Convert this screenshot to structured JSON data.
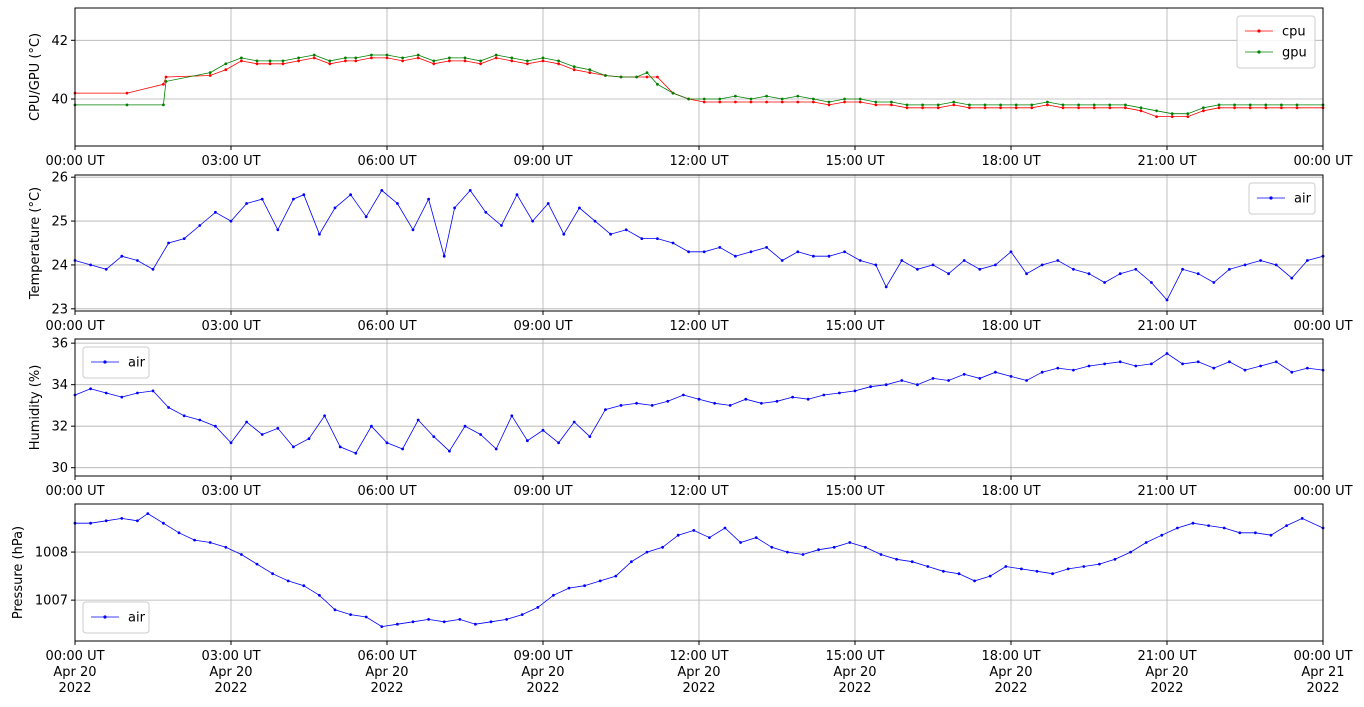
{
  "chart_data": [
    {
      "type": "line",
      "ylabel": "CPU/GPU (°C)",
      "ylim": [
        38.4,
        43.1
      ],
      "yticks": [
        40,
        42
      ],
      "legend": "top-right",
      "grid": true,
      "xlim": [
        "2022-04-20T00:00Z",
        "2022-04-21T00:00Z"
      ],
      "x_tick_labels": [
        "00:00 UT",
        "03:00 UT",
        "06:00 UT",
        "09:00 UT",
        "12:00 UT",
        "15:00 UT",
        "18:00 UT",
        "21:00 UT",
        "00:00 UT"
      ],
      "series": [
        {
          "name": "cpu",
          "color": "#ff0000",
          "x_hours": [
            0,
            1,
            1.7,
            1.75,
            2.6,
            2.9,
            3.2,
            3.5,
            3.75,
            4,
            4.3,
            4.6,
            4.9,
            5.2,
            5.4,
            5.7,
            6,
            6.3,
            6.6,
            6.9,
            7.2,
            7.5,
            7.8,
            8.1,
            8.4,
            8.7,
            9,
            9.3,
            9.6,
            9.9,
            10.2,
            10.5,
            10.8,
            11,
            11.2,
            11.5,
            11.8,
            12.1,
            12.4,
            12.7,
            13,
            13.3,
            13.6,
            13.9,
            14.2,
            14.5,
            14.8,
            15.1,
            15.4,
            15.7,
            16,
            16.3,
            16.6,
            16.9,
            17.2,
            17.5,
            17.8,
            18.1,
            18.4,
            18.7,
            19,
            19.3,
            19.6,
            19.9,
            20.2,
            20.5,
            20.8,
            21.1,
            21.4,
            21.7,
            22,
            22.3,
            22.6,
            22.9,
            23.2,
            23.5,
            24
          ],
          "values": [
            40.2,
            40.2,
            40.5,
            40.75,
            40.8,
            41.0,
            41.3,
            41.2,
            41.2,
            41.2,
            41.3,
            41.4,
            41.2,
            41.3,
            41.3,
            41.4,
            41.4,
            41.3,
            41.4,
            41.2,
            41.3,
            41.3,
            41.2,
            41.4,
            41.3,
            41.2,
            41.3,
            41.2,
            41.0,
            40.9,
            40.8,
            40.75,
            40.75,
            40.75,
            40.75,
            40.2,
            40.0,
            39.9,
            39.9,
            39.9,
            39.9,
            39.9,
            39.9,
            39.9,
            39.9,
            39.8,
            39.9,
            39.9,
            39.8,
            39.8,
            39.7,
            39.7,
            39.7,
            39.8,
            39.7,
            39.7,
            39.7,
            39.7,
            39.7,
            39.8,
            39.7,
            39.7,
            39.7,
            39.7,
            39.7,
            39.6,
            39.4,
            39.4,
            39.4,
            39.6,
            39.7,
            39.7,
            39.7,
            39.7,
            39.7,
            39.7,
            39.7
          ]
        },
        {
          "name": "gpu",
          "color": "#008000",
          "x_hours": [
            0,
            1,
            1.7,
            1.75,
            2.6,
            2.9,
            3.2,
            3.5,
            3.75,
            4,
            4.3,
            4.6,
            4.9,
            5.2,
            5.4,
            5.7,
            6,
            6.3,
            6.6,
            6.9,
            7.2,
            7.5,
            7.8,
            8.1,
            8.4,
            8.7,
            9,
            9.3,
            9.6,
            9.9,
            10.2,
            10.5,
            10.8,
            11,
            11.2,
            11.5,
            11.8,
            12.1,
            12.4,
            12.7,
            13,
            13.3,
            13.6,
            13.9,
            14.2,
            14.5,
            14.8,
            15.1,
            15.4,
            15.7,
            16,
            16.3,
            16.6,
            16.9,
            17.2,
            17.5,
            17.8,
            18.1,
            18.4,
            18.7,
            19,
            19.3,
            19.6,
            19.9,
            20.2,
            20.5,
            20.8,
            21.1,
            21.4,
            21.7,
            22,
            22.3,
            22.6,
            22.9,
            23.2,
            23.5,
            24
          ],
          "values": [
            39.8,
            39.8,
            39.8,
            40.6,
            40.9,
            41.2,
            41.4,
            41.3,
            41.3,
            41.3,
            41.4,
            41.5,
            41.3,
            41.4,
            41.4,
            41.5,
            41.5,
            41.4,
            41.5,
            41.3,
            41.4,
            41.4,
            41.3,
            41.5,
            41.4,
            41.3,
            41.4,
            41.3,
            41.1,
            41.0,
            40.8,
            40.75,
            40.75,
            40.9,
            40.5,
            40.2,
            40.0,
            40.0,
            40.0,
            40.1,
            40.0,
            40.1,
            40.0,
            40.1,
            40.0,
            39.9,
            40.0,
            40.0,
            39.9,
            39.9,
            39.8,
            39.8,
            39.8,
            39.9,
            39.8,
            39.8,
            39.8,
            39.8,
            39.8,
            39.9,
            39.8,
            39.8,
            39.8,
            39.8,
            39.8,
            39.7,
            39.6,
            39.5,
            39.5,
            39.7,
            39.8,
            39.8,
            39.8,
            39.8,
            39.8,
            39.8,
            39.8
          ]
        }
      ]
    },
    {
      "type": "line",
      "ylabel": "Temperature (°C)",
      "ylim": [
        22.95,
        26.05
      ],
      "yticks": [
        23,
        24,
        25,
        26
      ],
      "legend": "top-right",
      "grid": true,
      "x_tick_labels": [
        "00:00 UT",
        "03:00 UT",
        "06:00 UT",
        "09:00 UT",
        "12:00 UT",
        "15:00 UT",
        "18:00 UT",
        "21:00 UT",
        "00:00 UT"
      ],
      "series": [
        {
          "name": "air",
          "color": "#0000ff",
          "x_hours": [
            0,
            0.3,
            0.6,
            0.9,
            1.2,
            1.5,
            1.8,
            2.1,
            2.4,
            2.7,
            3.0,
            3.3,
            3.6,
            3.9,
            4.2,
            4.4,
            4.7,
            5.0,
            5.3,
            5.6,
            5.9,
            6.2,
            6.5,
            6.8,
            7.1,
            7.3,
            7.6,
            7.9,
            8.2,
            8.5,
            8.8,
            9.1,
            9.4,
            9.7,
            10.0,
            10.3,
            10.6,
            10.9,
            11.2,
            11.5,
            11.8,
            12.1,
            12.4,
            12.7,
            13.0,
            13.3,
            13.6,
            13.9,
            14.2,
            14.5,
            14.8,
            15.1,
            15.4,
            15.6,
            15.9,
            16.2,
            16.5,
            16.8,
            17.1,
            17.4,
            17.7,
            18.0,
            18.3,
            18.6,
            18.9,
            19.2,
            19.5,
            19.8,
            20.1,
            20.4,
            20.7,
            21.0,
            21.3,
            21.6,
            21.9,
            22.2,
            22.5,
            22.8,
            23.1,
            23.4,
            23.7,
            24.0
          ],
          "values": [
            24.1,
            24.0,
            23.9,
            24.2,
            24.1,
            23.9,
            24.5,
            24.6,
            24.9,
            25.2,
            25.0,
            25.4,
            25.5,
            24.8,
            25.5,
            25.6,
            24.7,
            25.3,
            25.6,
            25.1,
            25.7,
            25.4,
            24.8,
            25.5,
            24.2,
            25.3,
            25.7,
            25.2,
            24.9,
            25.6,
            25.0,
            25.4,
            24.7,
            25.3,
            25.0,
            24.7,
            24.8,
            24.6,
            24.6,
            24.5,
            24.3,
            24.3,
            24.4,
            24.2,
            24.3,
            24.4,
            24.1,
            24.3,
            24.2,
            24.2,
            24.3,
            24.1,
            24.0,
            23.5,
            24.1,
            23.9,
            24.0,
            23.8,
            24.1,
            23.9,
            24.0,
            24.3,
            23.8,
            24.0,
            24.1,
            23.9,
            23.8,
            23.6,
            23.8,
            23.9,
            23.6,
            23.2,
            23.9,
            23.8,
            23.6,
            23.9,
            24.0,
            24.1,
            24.0,
            23.7,
            24.1,
            24.2
          ]
        }
      ]
    },
    {
      "type": "line",
      "ylabel": "Humidity (%)",
      "ylim": [
        29.6,
        36.2
      ],
      "yticks": [
        30,
        32,
        34,
        36
      ],
      "legend": "top-left",
      "grid": true,
      "x_tick_labels": [
        "00:00 UT",
        "03:00 UT",
        "06:00 UT",
        "09:00 UT",
        "12:00 UT",
        "15:00 UT",
        "18:00 UT",
        "21:00 UT",
        "00:00 UT"
      ],
      "series": [
        {
          "name": "air",
          "color": "#0000ff",
          "x_hours": [
            0,
            0.3,
            0.6,
            0.9,
            1.2,
            1.5,
            1.8,
            2.1,
            2.4,
            2.7,
            3.0,
            3.3,
            3.6,
            3.9,
            4.2,
            4.5,
            4.8,
            5.1,
            5.4,
            5.7,
            6.0,
            6.3,
            6.6,
            6.9,
            7.2,
            7.5,
            7.8,
            8.1,
            8.4,
            8.7,
            9.0,
            9.3,
            9.6,
            9.9,
            10.2,
            10.5,
            10.8,
            11.1,
            11.4,
            11.7,
            12.0,
            12.3,
            12.6,
            12.9,
            13.2,
            13.5,
            13.8,
            14.1,
            14.4,
            14.7,
            15.0,
            15.3,
            15.6,
            15.9,
            16.2,
            16.5,
            16.8,
            17.1,
            17.4,
            17.7,
            18.0,
            18.3,
            18.6,
            18.9,
            19.2,
            19.5,
            19.8,
            20.1,
            20.4,
            20.7,
            21.0,
            21.3,
            21.6,
            21.9,
            22.2,
            22.5,
            22.8,
            23.1,
            23.4,
            23.7,
            24.0
          ],
          "values": [
            33.5,
            33.8,
            33.6,
            33.4,
            33.6,
            33.7,
            32.9,
            32.5,
            32.3,
            32.0,
            31.2,
            32.2,
            31.6,
            31.9,
            31.0,
            31.4,
            32.5,
            31.0,
            30.7,
            32.0,
            31.2,
            30.9,
            32.3,
            31.5,
            30.8,
            32.0,
            31.6,
            30.9,
            32.5,
            31.3,
            31.8,
            31.2,
            32.2,
            31.5,
            32.8,
            33.0,
            33.1,
            33.0,
            33.2,
            33.5,
            33.3,
            33.1,
            33.0,
            33.3,
            33.1,
            33.2,
            33.4,
            33.3,
            33.5,
            33.6,
            33.7,
            33.9,
            34.0,
            34.2,
            34.0,
            34.3,
            34.2,
            34.5,
            34.3,
            34.6,
            34.4,
            34.2,
            34.6,
            34.8,
            34.7,
            34.9,
            35.0,
            35.1,
            34.9,
            35.0,
            35.5,
            35.0,
            35.1,
            34.8,
            35.1,
            34.7,
            34.9,
            35.1,
            34.6,
            34.8,
            34.7
          ]
        }
      ]
    },
    {
      "type": "line",
      "ylabel": "Pressure (hPa)",
      "ylim": [
        1006.15,
        1009.0
      ],
      "yticks": [
        1007,
        1008
      ],
      "legend": "bottom-left",
      "grid": true,
      "x_tick_labels": [
        [
          "00:00 UT",
          "Apr 20",
          "2022"
        ],
        [
          "03:00 UT",
          "Apr 20",
          "2022"
        ],
        [
          "06:00 UT",
          "Apr 20",
          "2022"
        ],
        [
          "09:00 UT",
          "Apr 20",
          "2022"
        ],
        [
          "12:00 UT",
          "Apr 20",
          "2022"
        ],
        [
          "15:00 UT",
          "Apr 20",
          "2022"
        ],
        [
          "18:00 UT",
          "Apr 20",
          "2022"
        ],
        [
          "21:00 UT",
          "Apr 20",
          "2022"
        ],
        [
          "00:00 UT",
          "Apr 21",
          "2022"
        ]
      ],
      "series": [
        {
          "name": "air",
          "color": "#0000ff",
          "x_hours": [
            0,
            0.3,
            0.6,
            0.9,
            1.2,
            1.4,
            1.7,
            2.0,
            2.3,
            2.6,
            2.9,
            3.2,
            3.5,
            3.8,
            4.1,
            4.4,
            4.7,
            5.0,
            5.3,
            5.6,
            5.9,
            6.2,
            6.5,
            6.8,
            7.1,
            7.4,
            7.7,
            8.0,
            8.3,
            8.6,
            8.9,
            9.2,
            9.5,
            9.8,
            10.1,
            10.4,
            10.7,
            11.0,
            11.3,
            11.6,
            11.9,
            12.2,
            12.5,
            12.8,
            13.1,
            13.4,
            13.7,
            14.0,
            14.3,
            14.6,
            14.9,
            15.2,
            15.5,
            15.8,
            16.1,
            16.4,
            16.7,
            17.0,
            17.3,
            17.6,
            17.9,
            18.2,
            18.5,
            18.8,
            19.1,
            19.4,
            19.7,
            20.0,
            20.3,
            20.6,
            20.9,
            21.2,
            21.5,
            21.8,
            22.1,
            22.4,
            22.7,
            23.0,
            23.3,
            23.6,
            24.0
          ],
          "values": [
            1008.6,
            1008.6,
            1008.65,
            1008.7,
            1008.65,
            1008.8,
            1008.6,
            1008.4,
            1008.25,
            1008.2,
            1008.1,
            1007.95,
            1007.75,
            1007.55,
            1007.4,
            1007.3,
            1007.1,
            1006.8,
            1006.7,
            1006.65,
            1006.45,
            1006.5,
            1006.55,
            1006.6,
            1006.55,
            1006.6,
            1006.5,
            1006.55,
            1006.6,
            1006.7,
            1006.85,
            1007.1,
            1007.25,
            1007.3,
            1007.4,
            1007.5,
            1007.8,
            1008.0,
            1008.1,
            1008.35,
            1008.45,
            1008.3,
            1008.5,
            1008.2,
            1008.3,
            1008.1,
            1008.0,
            1007.95,
            1008.05,
            1008.1,
            1008.2,
            1008.1,
            1007.95,
            1007.85,
            1007.8,
            1007.7,
            1007.6,
            1007.55,
            1007.4,
            1007.5,
            1007.7,
            1007.65,
            1007.6,
            1007.55,
            1007.65,
            1007.7,
            1007.75,
            1007.85,
            1008.0,
            1008.2,
            1008.35,
            1008.5,
            1008.6,
            1008.55,
            1008.5,
            1008.4,
            1008.4,
            1008.35,
            1008.55,
            1008.7,
            1008.5
          ]
        }
      ]
    }
  ]
}
